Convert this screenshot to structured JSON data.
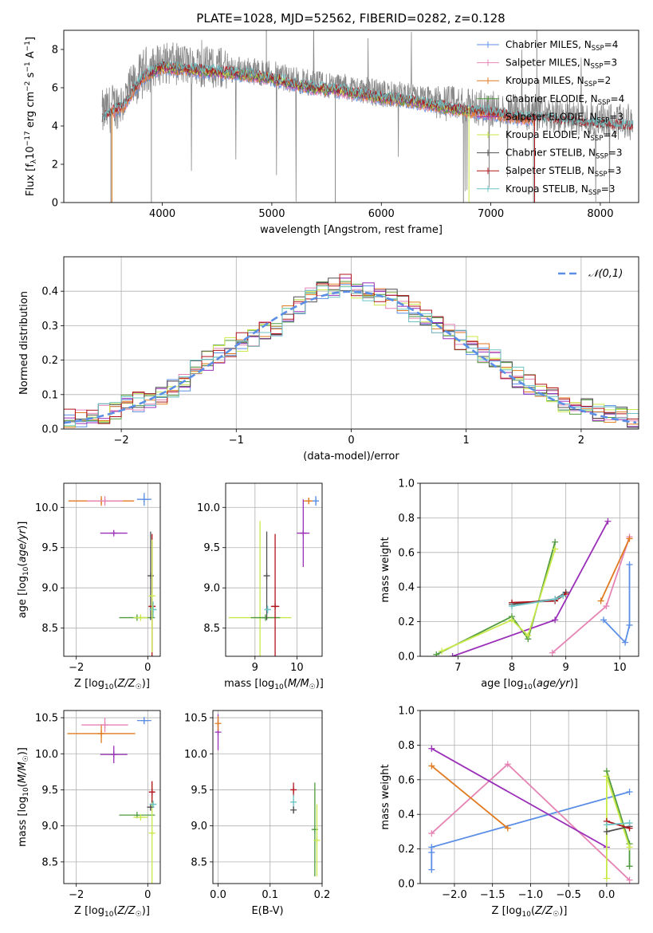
{
  "figure_title": "PLATE=1028, MJD=52562, FIBERID=0282, z=0.128",
  "colors": {
    "chabrier_miles": "#5b8ee6",
    "salpeter_miles": "#e584b4",
    "kroupa_miles": "#e07a1f",
    "chabrier_elodie": "#4f9a3e",
    "salpeter_elodie": "#9a2fb8",
    "kroupa_elodie": "#c9e94a",
    "chabrier_stelib": "#505050",
    "salpeter_stelib": "#b0141c",
    "kroupa_stelib": "#6cc4c7",
    "data": "#888888"
  },
  "chart_data": [
    {
      "id": "spectrum",
      "type": "line",
      "xlabel": "wavelength [Angstrom, rest frame]",
      "ylabel": "Flux [f_λ 10^-17 erg cm^-2 s^-1 A^-1]",
      "xlim": [
        3100,
        8350
      ],
      "ylim": [
        0,
        9
      ],
      "xticks": [
        4000,
        5000,
        6000,
        7000,
        8000
      ],
      "yticks": [
        0,
        2,
        4,
        6,
        8
      ],
      "grid": false,
      "legend_position": "top-right",
      "legend": [
        "Chabrier MILES, N_SSP=4",
        "Salpeter MILES, N_SSP=3",
        "Kroupa MILES, N_SSP=2",
        "Chabrier ELODIE, N_SSP=4",
        "Salpeter ELODIE, N_SSP=3",
        "Kroupa ELODIE, N_SSP=4",
        "Chabrier STELIB, N_SSP=3",
        "Salpeter STELIB, N_SSP=3",
        "Kroupa STELIB, N_SSP=3"
      ],
      "continuum": {
        "x": [
          3450,
          3550,
          3650,
          3750,
          3850,
          4000,
          4200,
          4400,
          4600,
          4800,
          5000,
          5200,
          5400,
          5600,
          5800,
          6000,
          6200,
          6400,
          6600,
          6800,
          7000,
          7200,
          7400,
          7600,
          7800,
          8000,
          8200,
          8300
        ],
        "y": [
          4.6,
          5.0,
          5.3,
          6.2,
          6.9,
          7.3,
          7.2,
          7.1,
          7.0,
          6.9,
          6.7,
          6.4,
          6.2,
          6.1,
          5.9,
          5.7,
          5.6,
          5.4,
          5.2,
          5.0,
          4.9,
          4.7,
          4.6,
          4.5,
          4.4,
          4.3,
          4.2,
          4.2
        ]
      }
    },
    {
      "id": "residuals",
      "type": "line",
      "xlabel": "(data-model)/error",
      "ylabel": "Normed distribution",
      "xlim": [
        -2.5,
        2.5
      ],
      "ylim": [
        0,
        0.5
      ],
      "xticks": [
        -2,
        -1,
        0,
        1,
        2
      ],
      "yticks": [
        0.0,
        0.1,
        0.2,
        0.3,
        0.4
      ],
      "grid": true,
      "legend_position": "top-right",
      "legend": [
        "𝒩(0,1)"
      ],
      "bins": [
        -2.5,
        -2.4,
        -2.3,
        -2.2,
        -2.1,
        -2.0,
        -1.9,
        -1.8,
        -1.7,
        -1.6,
        -1.5,
        -1.4,
        -1.3,
        -1.2,
        -1.1,
        -1.0,
        -0.9,
        -0.8,
        -0.7,
        -0.6,
        -0.5,
        -0.4,
        -0.3,
        -0.2,
        -0.1,
        0.0,
        0.1,
        0.2,
        0.3,
        0.4,
        0.5,
        0.6,
        0.7,
        0.8,
        0.9,
        1.0,
        1.1,
        1.2,
        1.3,
        1.4,
        1.5,
        1.6,
        1.7,
        1.8,
        1.9,
        2.0,
        2.1,
        2.2,
        2.3,
        2.4
      ],
      "hist_base": [
        0.03,
        0.035,
        0.04,
        0.045,
        0.055,
        0.07,
        0.08,
        0.09,
        0.1,
        0.12,
        0.14,
        0.17,
        0.2,
        0.22,
        0.24,
        0.25,
        0.27,
        0.29,
        0.3,
        0.33,
        0.36,
        0.38,
        0.4,
        0.41,
        0.42,
        0.41,
        0.4,
        0.39,
        0.38,
        0.36,
        0.34,
        0.32,
        0.3,
        0.28,
        0.26,
        0.24,
        0.22,
        0.2,
        0.17,
        0.15,
        0.13,
        0.11,
        0.09,
        0.08,
        0.07,
        0.06,
        0.05,
        0.045,
        0.04,
        0.03
      ],
      "normal_curve": {
        "mean": 0,
        "sigma": 1
      }
    },
    {
      "id": "age-vs-Z",
      "type": "scatter",
      "xlabel": "Z [log10(Z/Z☉)]",
      "ylabel": "age [log10(age/yr)]",
      "xlim": [
        -2.35,
        0.35
      ],
      "ylim": [
        8.15,
        10.3
      ],
      "xticks": [
        -2,
        0
      ],
      "yticks": [
        8.5,
        9.0,
        9.5,
        10.0
      ],
      "grid": true,
      "errorbars": [
        {
          "c": "kroupa_miles",
          "x": -1.3,
          "y": 10.08,
          "xerr": 0.92,
          "yerr": 0.06
        },
        {
          "c": "salpeter_miles",
          "x": -1.2,
          "y": 10.08,
          "xerr": 0.5,
          "yerr": 0.06
        },
        {
          "c": "chabrier_miles",
          "x": -0.1,
          "y": 10.1,
          "xerr": 0.2,
          "yerr": 0.08
        },
        {
          "c": "salpeter_elodie",
          "x": -0.95,
          "y": 9.68,
          "xerr": 0.38,
          "yerr": 0.0
        },
        {
          "c": "chabrier_elodie",
          "x": -0.3,
          "y": 8.63,
          "xerr": 0.5,
          "yerr": 0.0
        },
        {
          "c": "kroupa_elodie",
          "x": -0.2,
          "y": 8.63,
          "xerr": 0.2,
          "yerr": 0.0
        },
        {
          "c": "chabrier_stelib",
          "x": 0.08,
          "y": 9.15,
          "xerr": 0.01,
          "yerr": 0.55
        },
        {
          "c": "salpeter_stelib",
          "x": 0.12,
          "y": 8.77,
          "xerr": 0.1,
          "yerr": 0.9
        },
        {
          "c": "kroupa_stelib",
          "x": 0.15,
          "y": 8.73,
          "xerr": 0.1,
          "yerr": 0.1
        },
        {
          "c": "kroupa_elodie",
          "x": 0.12,
          "y": 8.9,
          "xerr": 0.0,
          "yerr": 0.7
        }
      ]
    },
    {
      "id": "age-vs-mass",
      "type": "scatter",
      "xlabel": "mass [log10(M/M☉)]",
      "ylabel": "",
      "xlim": [
        8.3,
        10.6
      ],
      "ylim": [
        8.15,
        10.3
      ],
      "xticks": [
        9,
        10
      ],
      "yticks": [
        8.5,
        9.0,
        9.5,
        10.0
      ],
      "grid": true,
      "errorbars": [
        {
          "c": "salpeter_elodie",
          "x": 10.15,
          "y": 9.68,
          "xerr": 0.15,
          "yerr": 0.42
        },
        {
          "c": "kroupa_miles",
          "x": 10.28,
          "y": 10.08,
          "xerr": 0.12,
          "yerr": 0.04
        },
        {
          "c": "chabrier_miles",
          "x": 10.45,
          "y": 10.08,
          "xerr": 0.04,
          "yerr": 0.06
        },
        {
          "c": "kroupa_elodie",
          "x": 9.12,
          "y": 8.63,
          "xerr": 0.75,
          "yerr": 1.2
        },
        {
          "c": "chabrier_elodie",
          "x": 9.25,
          "y": 8.63,
          "xerr": 0.35,
          "yerr": 0.0
        },
        {
          "c": "chabrier_stelib",
          "x": 9.28,
          "y": 9.15,
          "xerr": 0.0,
          "yerr": 0.55
        },
        {
          "c": "salpeter_stelib",
          "x": 9.48,
          "y": 8.77,
          "xerr": 0.1,
          "yerr": 0.9
        },
        {
          "c": "kroupa_stelib",
          "x": 9.3,
          "y": 8.73,
          "xerr": 0.08,
          "yerr": 0.05
        }
      ]
    },
    {
      "id": "weight-vs-age",
      "type": "line",
      "xlabel": "age [log10(age/yr)]",
      "ylabel": "mass weight",
      "xlim": [
        6.3,
        10.35
      ],
      "ylim": [
        0,
        1.0
      ],
      "xticks": [
        7,
        8,
        9,
        10
      ],
      "yticks": [
        0.0,
        0.2,
        0.4,
        0.6,
        0.8,
        1.0
      ],
      "grid": true,
      "series": [
        {
          "c": "chabrier_miles",
          "x": [
            9.7,
            10.1,
            10.18,
            10.18
          ],
          "y": [
            0.21,
            0.08,
            0.18,
            0.53
          ]
        },
        {
          "c": "salpeter_miles",
          "x": [
            8.75,
            9.75,
            10.18
          ],
          "y": [
            0.02,
            0.29,
            0.69
          ]
        },
        {
          "c": "kroupa_miles",
          "x": [
            9.65,
            10.18
          ],
          "y": [
            0.32,
            0.68
          ]
        },
        {
          "c": "chabrier_elodie",
          "x": [
            6.6,
            8.0,
            8.3,
            8.8
          ],
          "y": [
            0.01,
            0.23,
            0.1,
            0.66
          ]
        },
        {
          "c": "salpeter_elodie",
          "x": [
            6.9,
            8.8,
            9.78
          ],
          "y": [
            0.0,
            0.21,
            0.78
          ]
        },
        {
          "c": "kroupa_elodie",
          "x": [
            6.7,
            8.0,
            8.3,
            8.8
          ],
          "y": [
            0.03,
            0.21,
            0.12,
            0.62
          ]
        },
        {
          "c": "chabrier_stelib",
          "x": [
            8.0,
            8.8,
            9.0
          ],
          "y": [
            0.3,
            0.33,
            0.37
          ]
        },
        {
          "c": "salpeter_stelib",
          "x": [
            8.0,
            8.8,
            9.0
          ],
          "y": [
            0.31,
            0.32,
            0.36
          ]
        },
        {
          "c": "kroupa_stelib",
          "x": [
            8.0,
            8.8,
            8.95
          ],
          "y": [
            0.29,
            0.33,
            0.35
          ]
        }
      ]
    },
    {
      "id": "mass-vs-Z",
      "type": "scatter",
      "xlabel": "Z [log10(Z/Z☉)]",
      "ylabel": "mass [log10(M/M☉)]",
      "xlim": [
        -2.35,
        0.35
      ],
      "ylim": [
        8.2,
        10.6
      ],
      "xticks": [
        -2,
        0
      ],
      "yticks": [
        8.5,
        9.0,
        9.5,
        10.0,
        10.5
      ],
      "grid": true,
      "errorbars": [
        {
          "c": "kroupa_miles",
          "x": -1.3,
          "y": 10.28,
          "xerr": 0.95,
          "yerr": 0.13
        },
        {
          "c": "salpeter_miles",
          "x": -1.2,
          "y": 10.4,
          "xerr": 0.65,
          "yerr": 0.1
        },
        {
          "c": "chabrier_miles",
          "x": -0.1,
          "y": 10.46,
          "xerr": 0.2,
          "yerr": 0.05
        },
        {
          "c": "salpeter_elodie",
          "x": -0.95,
          "y": 9.99,
          "xerr": 0.38,
          "yerr": 0.12
        },
        {
          "c": "chabrier_elodie",
          "x": -0.3,
          "y": 9.15,
          "xerr": 0.5,
          "yerr": 0.0
        },
        {
          "c": "kroupa_elodie",
          "x": -0.2,
          "y": 9.12,
          "xerr": 0.2,
          "yerr": 0.0
        },
        {
          "c": "kroupa_elodie",
          "x": 0.12,
          "y": 8.9,
          "xerr": 0.0,
          "yerr": 0.7
        },
        {
          "c": "chabrier_stelib",
          "x": 0.08,
          "y": 9.26,
          "xerr": 0.1,
          "yerr": 0.05
        },
        {
          "c": "salpeter_stelib",
          "x": 0.12,
          "y": 9.47,
          "xerr": 0.08,
          "yerr": 0.15
        },
        {
          "c": "kroupa_stelib",
          "x": 0.15,
          "y": 9.3,
          "xerr": 0.1,
          "yerr": 0.05
        }
      ]
    },
    {
      "id": "mass-vs-EBV",
      "type": "scatter",
      "xlabel": "E(B-V)",
      "ylabel": "",
      "xlim": [
        -0.01,
        0.2
      ],
      "ylim": [
        8.2,
        10.6
      ],
      "xticks": [
        0.0,
        0.1,
        0.2
      ],
      "yticks": [
        8.5,
        9.0,
        9.5,
        10.0,
        10.5
      ],
      "grid": true,
      "errorbars": [
        {
          "c": "salpeter_elodie",
          "x": 0.0,
          "y": 10.3,
          "xerr": 0.0,
          "yerr": 0.25
        },
        {
          "c": "kroupa_miles",
          "x": 0.0,
          "y": 10.42,
          "xerr": 0.0,
          "yerr": 0.1
        },
        {
          "c": "salpeter_stelib",
          "x": 0.145,
          "y": 9.5,
          "xerr": 0.0,
          "yerr": 0.1
        },
        {
          "c": "kroupa_stelib",
          "x": 0.145,
          "y": 9.33,
          "xerr": 0.0,
          "yerr": 0.1
        },
        {
          "c": "chabrier_stelib",
          "x": 0.145,
          "y": 9.22,
          "xerr": 0.0,
          "yerr": 0.05
        },
        {
          "c": "chabrier_elodie",
          "x": 0.186,
          "y": 8.95,
          "xerr": 0.0,
          "yerr": 0.65
        },
        {
          "c": "kroupa_elodie",
          "x": 0.19,
          "y": 8.8,
          "xerr": 0.0,
          "yerr": 0.5
        }
      ]
    },
    {
      "id": "weight-vs-Z",
      "type": "line",
      "xlabel": "Z [log10(Z/Z☉)]",
      "ylabel": "mass weight",
      "xlim": [
        -2.45,
        0.42
      ],
      "ylim": [
        0,
        1.0
      ],
      "xticks": [
        -2.0,
        -1.5,
        -1.0,
        -0.5,
        0.0
      ],
      "yticks": [
        0.0,
        0.2,
        0.4,
        0.6,
        0.8,
        1.0
      ],
      "grid": true,
      "series": [
        {
          "c": "chabrier_miles",
          "x": [
            -2.3,
            -2.3,
            -2.3,
            0.3
          ],
          "y": [
            0.08,
            0.18,
            0.21,
            0.53
          ]
        },
        {
          "c": "salpeter_miles",
          "x": [
            -2.3,
            -1.3,
            0.3
          ],
          "y": [
            0.29,
            0.69,
            0.02
          ]
        },
        {
          "c": "kroupa_miles",
          "x": [
            -2.3,
            -1.3
          ],
          "y": [
            0.68,
            0.32
          ]
        },
        {
          "c": "chabrier_elodie",
          "x": [
            0.0,
            0.3,
            0.3
          ],
          "y": [
            0.65,
            0.23,
            0.1
          ]
        },
        {
          "c": "salpeter_elodie",
          "x": [
            -2.3,
            0.0
          ],
          "y": [
            0.78,
            0.21
          ]
        },
        {
          "c": "kroupa_elodie",
          "x": [
            0.0,
            0.0,
            0.3
          ],
          "y": [
            0.03,
            0.62,
            0.21
          ]
        },
        {
          "c": "chabrier_stelib",
          "x": [
            0.0,
            0.3
          ],
          "y": [
            0.3,
            0.33
          ]
        },
        {
          "c": "salpeter_stelib",
          "x": [
            0.0,
            0.3
          ],
          "y": [
            0.36,
            0.32
          ]
        },
        {
          "c": "kroupa_stelib",
          "x": [
            0.0,
            0.3
          ],
          "y": [
            0.34,
            0.35
          ]
        }
      ]
    }
  ]
}
